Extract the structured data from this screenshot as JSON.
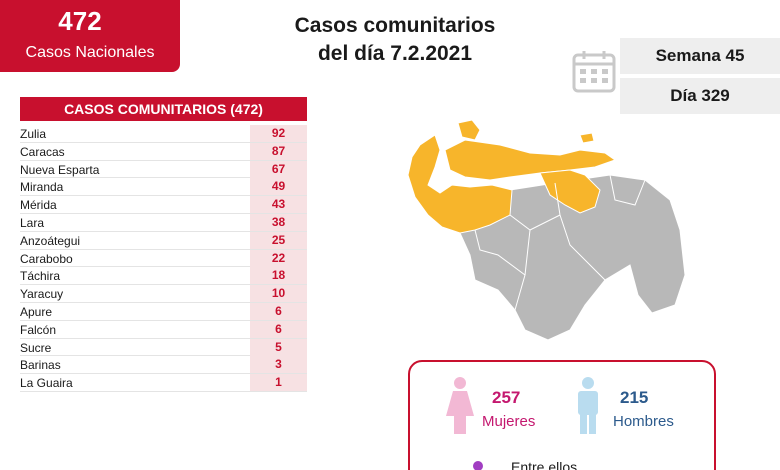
{
  "national": {
    "count": "472",
    "label": "Casos Nacionales"
  },
  "title": {
    "line1": "Casos comunitarios",
    "line2": "del día 7.2.2021"
  },
  "week": "Semana 45",
  "day": "Día 329",
  "table": {
    "header": "CASOS COMUNITARIOS (472)",
    "rows": [
      {
        "name": "Zulia",
        "value": "92"
      },
      {
        "name": "Caracas",
        "value": "87"
      },
      {
        "name": "Nueva Esparta",
        "value": "67"
      },
      {
        "name": "Miranda",
        "value": "49"
      },
      {
        "name": "Mérida",
        "value": "43"
      },
      {
        "name": "Lara",
        "value": "38"
      },
      {
        "name": "Anzoátegui",
        "value": "25"
      },
      {
        "name": "Carabobo",
        "value": "22"
      },
      {
        "name": "Táchira",
        "value": "18"
      },
      {
        "name": "Yaracuy",
        "value": "10"
      },
      {
        "name": "Apure",
        "value": "6"
      },
      {
        "name": "Falcón",
        "value": "6"
      },
      {
        "name": "Sucre",
        "value": "5"
      },
      {
        "name": "Barinas",
        "value": "3"
      },
      {
        "name": "La Guaira",
        "value": "1"
      }
    ]
  },
  "gender": {
    "female_count": "257",
    "female_label": "Mujeres",
    "male_count": "215",
    "male_label": "Hombres",
    "among": "Entre ellos"
  },
  "colors": {
    "accent": "#c8102e",
    "map_highlight": "#f7b52b",
    "map_base": "#b8b8b8",
    "female": "#c4186f",
    "male": "#2c5a8c"
  },
  "icons": [
    "calendar-icon",
    "female-icon",
    "male-icon"
  ]
}
